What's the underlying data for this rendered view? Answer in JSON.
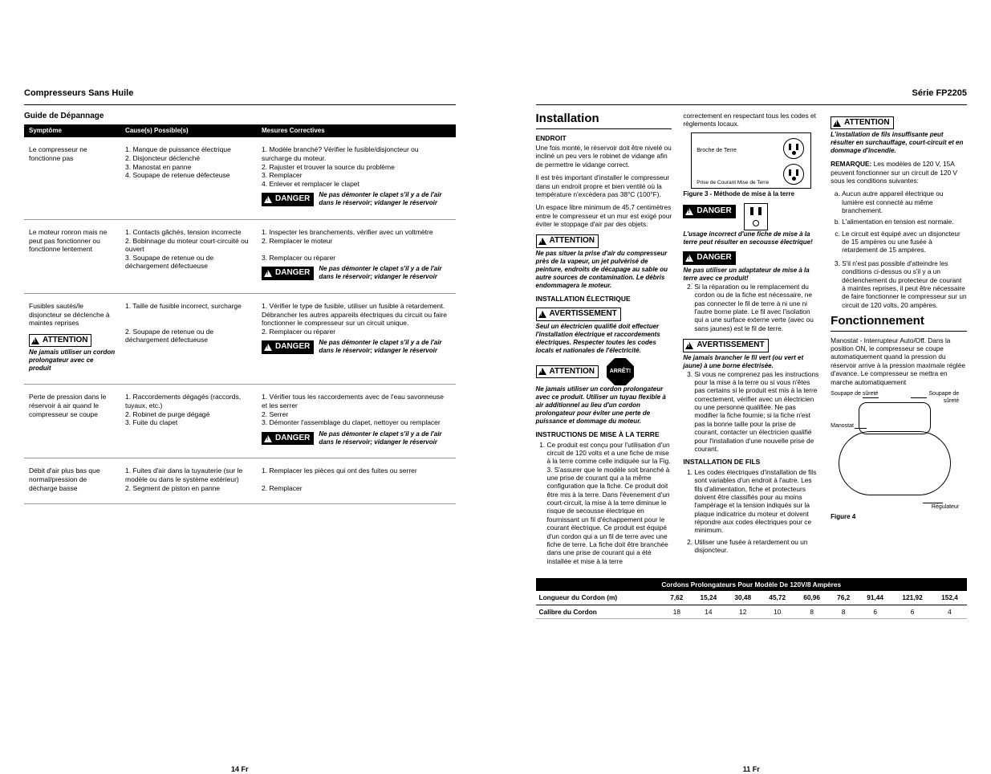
{
  "left": {
    "title": "Compresseurs Sans Huile",
    "guide": "Guide de Dépannage",
    "columns": {
      "sym": "Symptôme",
      "cause": "Cause(s) Possible(s)",
      "mes": "Mesures Correctives"
    },
    "danger_label": "DANGER",
    "attention_label": "ATTENTION",
    "danger_note": "Ne pas démonter le clapet s'il y a de l'air dans le réservoir; vidanger le réservoir",
    "rows": [
      {
        "sym": "Le compresseur ne fonctionne pas",
        "causes": "1. Manque de puissance électrique\n2. Disjoncteur déclenché\n3. Manostat en panne\n4. Soupape de retenue défecteuse",
        "mes": "1. Modèle branché? Vérifier le fusible/disjoncteur ou surcharge du moteur.\n2. Rajuster et trouver la source du problème\n3. Remplacer\n4. Enlever et remplacer le clapet",
        "danger_after": true
      },
      {
        "sym": "Le moteur ronron mais ne peut pas fonctionner ou fonctionne lentement",
        "causes": "1. Contacts gâchés, tension incorrecte\n2. Bobinnage du moteur court-circuité ou ouvert\n3. Soupape de retenue ou de déchargement défectueuse",
        "mes": "1. Inspecter les branchements, vérifier avec un voltmètre\n2. Remplacer le moteur\n\n3. Remplacer ou réparer",
        "danger_after": true
      },
      {
        "sym_html": "Fusibles sautés/le disjoncteur se déclenche à maintes reprises",
        "sym_attention": "Ne jamais utiliser un cordon prolongateur avec ce produit",
        "causes": "1. Taille de fusible incorrect, surcharge\n\n\n2. Soupape de retenue ou de déchargement défectueuse",
        "mes": "1. Vérifier le type de fusible, utiliser un fusible à retardement. Débrancher les autres appareils électriques du circuit ou faire fonctionner le compresseur sur un circuit unique.\n2. Remplacer ou réparer",
        "danger_after": true
      },
      {
        "sym": "Perte de pression dans le réservoir à air quand le compresseur se coupe",
        "causes": "1. Raccordements dégagés (raccords, tuyaux, etc.)\n2. Robinet de purge dégagé\n3. Fuite du clapet",
        "mes": "1. Vérifier tous les raccordements avec de l'eau savonneuse et les serrer\n2. Serrer\n3. Démonter l'assemblage du clapet, nettoyer ou remplacer",
        "danger_after": true
      },
      {
        "sym": "Débit d'air plus bas que normal/pression de décharge basse",
        "causes": "1. Fuites d'air dans la tuyauterie (sur le modèle ou dans le système extérieur)\n2. Segment de piston en panne",
        "mes": "1. Remplacer les pièces qui ont des fuites ou serrer\n\n2. Remplacer",
        "danger_after": false
      }
    ],
    "footer": "14 Fr"
  },
  "right": {
    "series": "Série FP2205",
    "h_install": "Installation",
    "h_fonc": "Fonctionnement",
    "col1": {
      "endroit": "ENDROIT",
      "p1": "Une fois monté, le réservoir doit être nivelé ou incliné un peu vers le robinet de vidange afin de permettre le vidange correct.",
      "p2": "Il est très important d'installer le compresseur dans un endroit propre et bien ventilé où la température n'excèdera pas 38°C (100°F).",
      "p3": "Un espace libre minimum de 45,7 centimètres entre le compresseur et un mur est exigé pour éviter le stoppage d'air par des objets.",
      "att1": "Ne pas situer la prise d'air du compresseur près de la vapeur, un jet pulvérisé de peinture, endroits de décapage au sable ou autre sources de contamination. Le débris endommagera le moteur.",
      "elec_h": "INSTALLATION ÉLECTRIQUE",
      "avert1": "Seul un électricien qualifié doit effectuer l'installation électrique et raccordements électriques. Respecter toutes les codes locals et nationales de l'électricité.",
      "stop": "ARRÊT!",
      "att2": "Ne jamais utiliser un cordon prolongateur avec ce produit. Utiliser un tuyau flexible à air additionnel au lieu d'un cordon prolongateur pour éviter une perte de puissance et dommage du moteur.",
      "mise_h": "INSTRUCTIONS DE MISE À LA TERRE",
      "li1": "Ce produit est conçu pour l'utilisation d'un circuit de 120 volts et a une fiche de mise à la terre comme celle indiquée sur la Fig. 3. S'assurer que le modèle soit branché à une prise de courant qui a la même configuration que la fiche. Ce produit doit être mis à la terre. Dans l'évenement d'un court-circuit, la mise à la terre diminue le risque de secousse électrique en fournissant un fil d'échappement pour le courant électrique. Ce produit est équipé d'un cordon qui a un fil de terre avec une fiche de terre. La fiche doit être branchée dans une prise de courant qui a été installée et mise à la terre"
    },
    "col2": {
      "p_top": "correctement en respectant tous les codes et règlements locaux.",
      "outlet_label1": "Broche de Terre",
      "outlet_label2": "Prise de Courant Mise de Terre",
      "fig3": "Figure 3 - Méthode de mise à la terre",
      "danger1": "L'usage incorrect d'une fiche de mise à la terre peut résulter en secousse électrique!",
      "danger2": "Ne pas utiliser un adaptateur de mise à la terre avec ce produit!",
      "li2": "Si la réparation ou le remplacement du cordon ou de la fiche est nécessaire, ne pas connecter le fil de terre à ni une ni l'autre borne plate. Le fil avec l'isolation qui a une surface externe verte (avec ou sans jaunes) est le fil de terre.",
      "avert2": "Ne jamais brancher le fil vert (ou vert et jaune) à une borne électrisée.",
      "li3": "Si vous ne comprenez pas les instructions pour la mise à la terre ou si vous n'êtes pas certains si le produit est mis à la terre correctement, vérifier avec un électricien ou une personne qualifiée. Ne pas modifier la fiche fournie; si la fiche n'est pas la bonne taille pour la prise de courant, contacter un électricien qualifié pour l'installation d'une nouvelle prise de courant.",
      "fils_h": "INSTALLATION DE FILS",
      "f1": "Les codes électriques d'installation de fils sont variables d'un endroit à l'autre. Les fils d'alimentation, fiche et protecteurs doivent être classifiés pour au moins l'ampérage et la tension indiqués sur la plaque indicatrice du moteur et doivent répondre aux codes électriques pour ce minimum.",
      "f2": "Utiliser une fusée à retardement ou un disjoncteur."
    },
    "col3": {
      "att_top": "L'installation de fils insuffisante peut résulter en surchauffage, court-circuit et en dommage d'incendie.",
      "rem_h": "REMARQUE:",
      "rem": "Les modèles de 120 V, 15A peuvent fonctionner sur un circuit de 120 V sous les conditions suivantes:",
      "a": "Aucun autre appareil électrique ou lumière est connecté au même branchement.",
      "b": "L'alimentation en tension est normale.",
      "c": "Le circuit est équipé avec un disjoncteur de 15 ampères ou une fusée à retardement de 15 ampères.",
      "li3b": "S'il n'est pas possible d'atteindre les conditions ci-dessus ou s'il y a un déclenchement du protecteur de courant à maintes reprises, il peut être nécessaire de faire fonctionner le compresseur sur un circuit de 120 volts, 20 ampères.",
      "fonc_p": "Manostat - Interrupteur Auto/Off. Dans la position ON, le compresseur se coupe automatiquement quand la pression du réservoir arrive à la pression maximale réglée d'avance. Le compresseur se mettra en marche automatiquement",
      "labels": {
        "ss": "Soupape de sûreté",
        "sv": "Soupape de sûreté",
        "man": "Manostat",
        "reg": "Régulateur"
      },
      "fig4": "Figure 4"
    },
    "table": {
      "caption": "Cordons Prolongateurs Pour Modèle De 120V/8 Ampères",
      "row1_label": "Longueur du Cordon (m)",
      "row1": [
        "7,62",
        "15,24",
        "30,48",
        "45,72",
        "60,96",
        "76,2",
        "91,44",
        "121,92",
        "152,4"
      ],
      "row2_label": "Calibre du Cordon",
      "row2": [
        "18",
        "14",
        "12",
        "10",
        "8",
        "8",
        "6",
        "6",
        "4"
      ]
    },
    "footer": "11 Fr",
    "avert_label": "AVERTISSEMENT"
  },
  "labels": {
    "attention": "ATTENTION",
    "danger": "DANGER",
    "avert": "AVERTISSEMENT"
  }
}
